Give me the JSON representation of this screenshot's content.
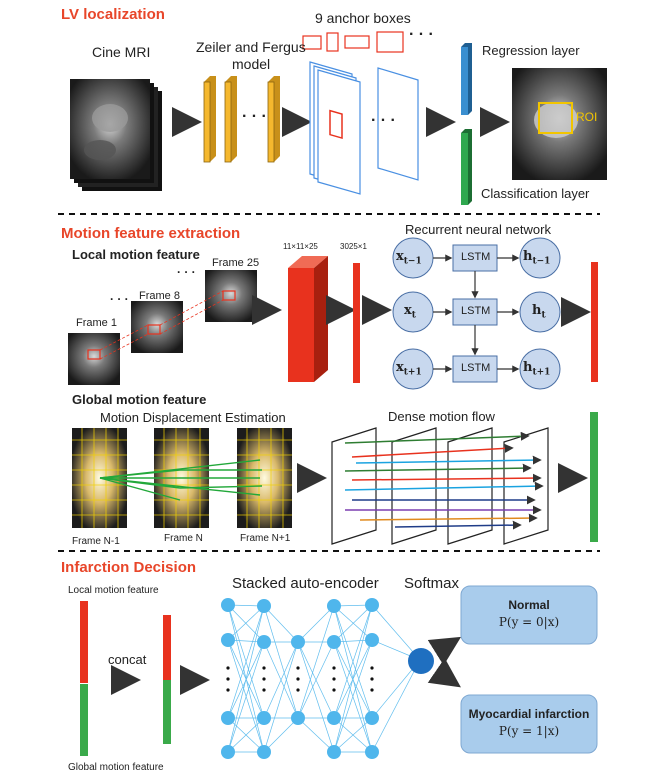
{
  "sections": {
    "lv_localization": {
      "title": "LV localization",
      "cine_mri": "Cine MRI",
      "zf_model_line1": "Zeiler and Fergus",
      "zf_model_line2": "model",
      "anchor_boxes": "9 anchor boxes",
      "regression_layer": "Regression layer",
      "classification_layer": "Classification layer",
      "roi": "ROI",
      "ellipsis": "...",
      "dots": "· · ·"
    },
    "motion_feature_extraction": {
      "title": "Motion feature extraction",
      "local_motion_feature": "Local motion feature",
      "global_motion_feature": "Global motion feature",
      "frame_1": "Frame 1",
      "frame_8": "Frame 8",
      "frame_25": "Frame 25",
      "dim_3d": "11×11×25",
      "dim_1d": "3025×1",
      "rnn_title": "Recurrent neural network",
      "lstm": "LSTM",
      "x_tm1": "x",
      "x_t": "x",
      "x_tp1": "x",
      "h_tm1": "h",
      "h_t": "h",
      "h_tp1": "h",
      "sub_tm1": "t−1",
      "sub_t": "t",
      "sub_tp1": "t+1",
      "motion_displacement": "Motion Displacement Estimation",
      "dense_motion_flow": "Dense motion flow",
      "frame_n_minus_1": "Frame N-1",
      "frame_n": "Frame N",
      "frame_n_plus_1": "Frame N+1"
    },
    "infarction_decision": {
      "title": "Infarction Decision",
      "local_motion_feature": "Local motion feature",
      "global_motion_feature": "Global motion feature",
      "concat": "concat",
      "stacked_autoencoder": "Stacked auto-encoder",
      "softmax": "Softmax",
      "normal": "Normal",
      "normal_prob": "P(y = 0|x)",
      "mi": "Myocardial infarction",
      "mi_prob": "P(y = 1|x)"
    }
  },
  "colors": {
    "title_red": "#e8462a",
    "layer_orange": "#f5b82e",
    "regression_blue": "#3a8fd0",
    "classification_green": "#2fa84f",
    "feature_red": "#e8321e",
    "feature_green": "#3aaa4a",
    "rnn_node": "#c8d8ee",
    "lstm_box": "#c8d8ee",
    "ae_node": "#4fb6ec",
    "softmax_node": "#1f6fc0",
    "output_box": "#a9ccec"
  }
}
